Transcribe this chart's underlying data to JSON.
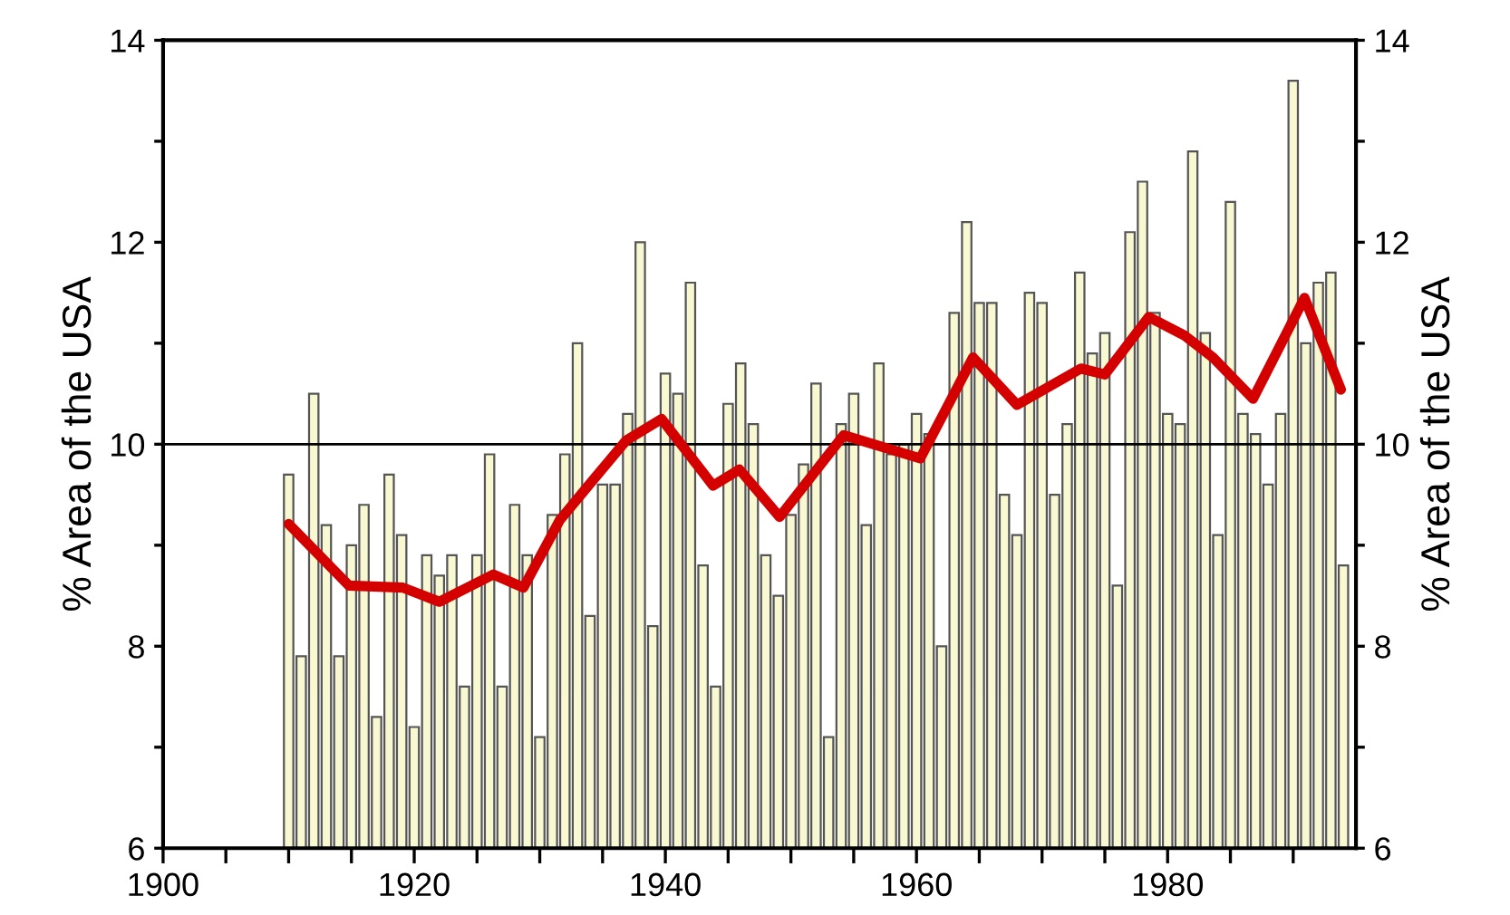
{
  "chart_data": {
    "type": "bar",
    "x": [
      1910,
      1911,
      1912,
      1913,
      1914,
      1915,
      1916,
      1917,
      1918,
      1919,
      1920,
      1921,
      1922,
      1923,
      1924,
      1925,
      1926,
      1927,
      1928,
      1929,
      1930,
      1931,
      1932,
      1933,
      1934,
      1935,
      1936,
      1937,
      1938,
      1939,
      1940,
      1941,
      1942,
      1943,
      1944,
      1945,
      1946,
      1947,
      1948,
      1949,
      1950,
      1951,
      1952,
      1953,
      1954,
      1955,
      1956,
      1957,
      1958,
      1959,
      1960,
      1961,
      1962,
      1963,
      1964,
      1965,
      1966,
      1967,
      1968,
      1969,
      1970,
      1971,
      1972,
      1973,
      1974,
      1975,
      1976,
      1977,
      1978,
      1979,
      1980,
      1981,
      1982,
      1983,
      1984,
      1985,
      1986,
      1987,
      1988,
      1989,
      1990,
      1991,
      1992,
      1993,
      1994
    ],
    "series": [
      {
        "color": "#f8f8d2",
        "values": [
          9.7,
          7.9,
          10.5,
          9.2,
          7.9,
          9.0,
          9.4,
          7.3,
          9.7,
          9.1,
          7.2,
          8.9,
          8.7,
          8.9,
          7.6,
          8.9,
          9.9,
          7.6,
          9.4,
          8.9,
          7.1,
          9.3,
          9.9,
          11.0,
          8.3,
          9.6,
          9.6,
          10.3,
          12.0,
          8.2,
          10.7,
          10.5,
          11.6,
          8.8,
          7.6,
          10.4,
          10.8,
          10.2,
          8.9,
          8.5,
          9.3,
          9.8,
          10.6,
          7.1,
          10.2,
          10.5,
          9.2,
          10.8,
          9.9,
          10.0,
          10.3,
          10.1,
          8.0,
          11.3,
          12.2,
          11.4,
          11.4,
          9.5,
          9.1,
          11.5,
          11.4,
          9.5,
          10.2,
          11.7,
          10.9,
          11.1,
          8.6,
          12.1,
          12.6,
          11.3,
          10.3,
          10.2,
          12.9,
          11.1,
          9.1,
          12.4,
          10.3,
          10.1,
          9.6,
          10.3,
          13.6,
          11.0,
          11.6,
          11.7,
          8.8
        ]
      },
      {
        "type": "line",
        "color": "#d40000",
        "x": [
          1910,
          1914.8,
          1919.1,
          1922,
          1926.3,
          1928.7,
          1931.6,
          1934,
          1936.9,
          1939.7,
          1943.8,
          1945.9,
          1949.1,
          1954.2,
          1960.3,
          1964.5,
          1968,
          1973.1,
          1975,
          1978.5,
          1981.3,
          1983.6,
          1986.8,
          1990.9,
          1993.8
        ],
        "values": [
          9.21,
          8.6,
          8.58,
          8.44,
          8.71,
          8.58,
          9.25,
          9.61,
          10.04,
          10.25,
          9.59,
          9.75,
          9.28,
          10.09,
          9.86,
          10.86,
          10.39,
          10.75,
          10.69,
          11.26,
          11.08,
          10.86,
          10.45,
          11.45,
          10.54
        ]
      }
    ],
    "xlim": [
      1900,
      1995
    ],
    "xticks": [
      1900,
      {
        "value": 1905,
        "label": null
      },
      1920,
      {
        "value": 1915,
        "label": null
      },
      {
        "value": 1910,
        "label": null
      },
      {
        "value": 1925,
        "label": null
      },
      {
        "value": 1930,
        "label": null
      },
      {
        "value": 1935,
        "label": null
      },
      1940,
      {
        "value": 1945,
        "label": null
      },
      {
        "value": 1950,
        "label": null
      },
      {
        "value": 1955,
        "label": null
      },
      1960,
      {
        "value": 1965,
        "label": null
      },
      {
        "value": 1970,
        "label": null
      },
      {
        "value": 1975,
        "label": null
      },
      1980,
      {
        "value": 1985,
        "label": null
      },
      {
        "value": 1990,
        "label": null
      }
    ],
    "ylim": [
      6,
      14
    ],
    "yticks": [
      6,
      {
        "value": 7,
        "label": null
      },
      8,
      {
        "value": 9,
        "label": null
      },
      10,
      {
        "value": 11,
        "label": null
      },
      12,
      {
        "value": 13,
        "label": null
      },
      14
    ],
    "y2lim": [
      6,
      14
    ],
    "y2ticks": [
      6,
      {
        "value": 7,
        "label": null
      },
      8,
      {
        "value": 9,
        "label": null
      },
      10,
      {
        "value": 11,
        "label": null
      },
      12,
      {
        "value": 13,
        "label": null
      },
      14
    ],
    "ylabel": "% Area of the USA",
    "y2label": "% Area of the USA",
    "ref_lines": [
      {
        "axis": "y",
        "value": 10,
        "color": "#000000"
      }
    ],
    "grid": false,
    "legend": false
  }
}
